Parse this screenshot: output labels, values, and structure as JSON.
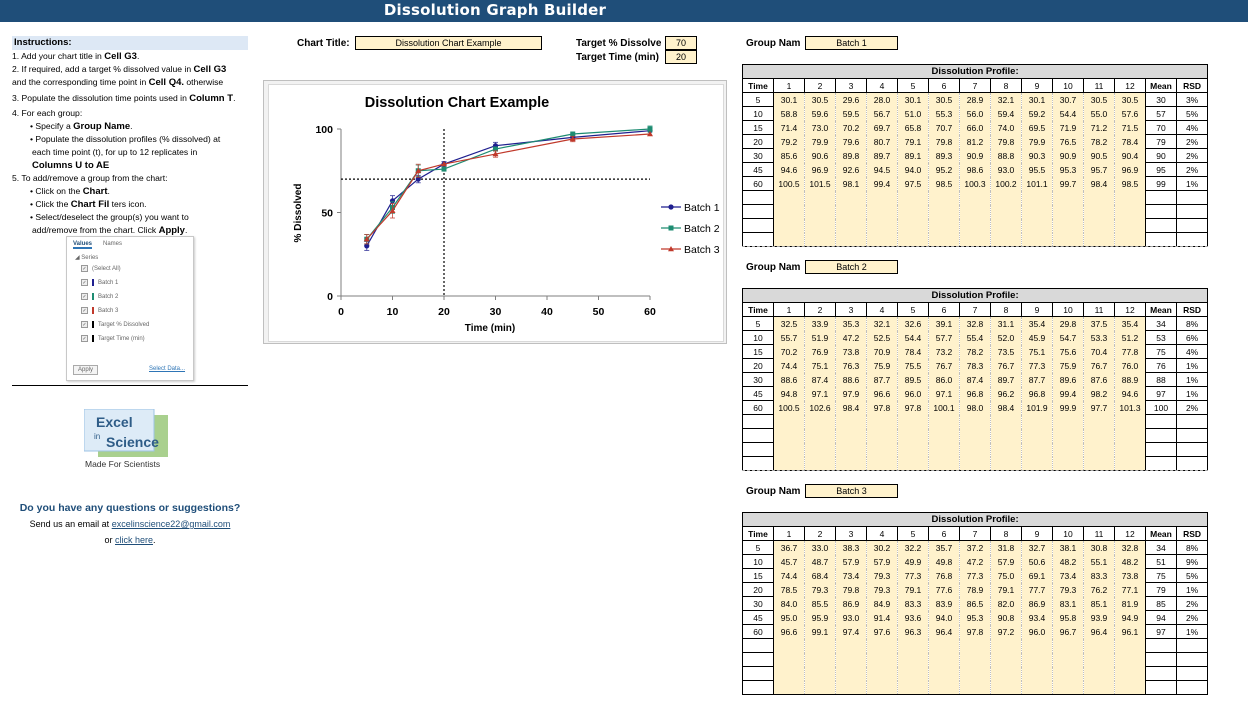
{
  "app": {
    "title": "Dissolution Graph Builder"
  },
  "instructions": {
    "heading": "Instructions:",
    "lines": [
      {
        "pre": "1. Add your chart title in ",
        "bold": "Cell G3",
        "post": "."
      },
      {
        "pre": "2. If required, add a target % dissolved value in ",
        "bold": "Cell G3",
        "post": ""
      },
      {
        "pre": "and the corresponding time point in ",
        "bold": "Cell Q4.",
        "post": "  otherwise"
      },
      {
        "pre": "3. Populate the dissolution time points used in ",
        "bold": "Column T",
        "post": "."
      },
      {
        "pre": "4. For each group:",
        "bold": "",
        "post": ""
      },
      {
        "pre": "• Specify a ",
        "bold": "Group Name",
        "post": "."
      },
      {
        "pre": "• Populate the dissolution profiles (% dissolved) at",
        "bold": "",
        "post": ""
      },
      {
        "pre": "each time point (t), for up to 12 replicates in",
        "bold": "",
        "post": ""
      },
      {
        "pre": "",
        "bold": "Columns U to AE",
        "post": ""
      },
      {
        "pre": "5. To add/remove a group from the chart:",
        "bold": "",
        "post": ""
      },
      {
        "pre": "• Click on the ",
        "bold": "Chart",
        "post": "."
      },
      {
        "pre": "• Click the ",
        "bold": "Chart Fil",
        "post": "  ters       icon."
      },
      {
        "pre": "• Select/deselect the group(s) you want to",
        "bold": "",
        "post": ""
      },
      {
        "pre": "add/remove from the chart. Click ",
        "bold": "Apply",
        "post": "."
      }
    ]
  },
  "filter_pane": {
    "tab_values": "Values",
    "tab_names": "Names",
    "section": "◢ Series",
    "items": [
      {
        "label": "(Select All)",
        "color": ""
      },
      {
        "label": "Batch 1",
        "color": "#1f1f8f"
      },
      {
        "label": "Batch 2",
        "color": "#1e8c72"
      },
      {
        "label": "Batch 3",
        "color": "#c0392b"
      },
      {
        "label": "Target % Dissolved",
        "color": "#000000"
      },
      {
        "label": "Target Time (min)",
        "color": "#000000"
      }
    ],
    "apply": "Apply",
    "select_data": "Select Data..."
  },
  "logo": {
    "line1": "Excel",
    "line2": "in",
    "line3": "Science",
    "tagline": "Made For Scientists"
  },
  "contact": {
    "heading": "Do you have any questions or suggestions?",
    "line_pre": "Send us an email at ",
    "email": "excelinscience22@gmail.com",
    "line2_pre": "or ",
    "link": "click here",
    "line2_post": "."
  },
  "settings": {
    "chart_title_label": "Chart Title:",
    "chart_title_value": "Dissolution Chart Example",
    "target_pct_label": "Target % Dissolve",
    "target_pct_value": "70",
    "target_time_label": "Target Time (min)",
    "target_time_value": "20"
  },
  "chart_data": {
    "type": "line",
    "title": "Dissolution Chart Example",
    "xlabel": "Time (min)",
    "ylabel": "% Dissolved",
    "xlim": [
      0,
      60
    ],
    "ylim": [
      0,
      100
    ],
    "xticks": [
      0,
      10,
      20,
      30,
      40,
      50,
      60
    ],
    "yticks": [
      0,
      50,
      100
    ],
    "x": [
      5,
      10,
      15,
      20,
      30,
      45,
      60
    ],
    "target": {
      "y": 70,
      "x": 20
    },
    "legend_position": "right",
    "series": [
      {
        "name": "Batch 1",
        "color": "#1f1f8f",
        "marker": "circle",
        "values": [
          30,
          57,
          70,
          79,
          90,
          95,
          99
        ]
      },
      {
        "name": "Batch 2",
        "color": "#1e8c72",
        "marker": "square",
        "values": [
          34,
          53,
          75,
          76,
          88,
          97,
          100
        ]
      },
      {
        "name": "Batch 3",
        "color": "#c0392b",
        "marker": "triangle",
        "values": [
          34,
          51,
          75,
          79,
          85,
          94,
          97
        ]
      }
    ],
    "errors": [
      [
        2.7,
        3.1,
        2.2,
        1.5,
        2.0,
        1.5,
        1.0
      ],
      [
        2.8,
        3.5,
        3.4,
        1.2,
        1.4,
        1.4,
        1.8
      ],
      [
        2.8,
        4.3,
        3.9,
        1.3,
        1.9,
        1.6,
        1.0
      ]
    ]
  },
  "groups": [
    {
      "label": "Group Nam",
      "name": "Batch 1",
      "profile_title": "Dissolution Profile:",
      "headers": [
        "Time",
        "1",
        "2",
        "3",
        "4",
        "5",
        "6",
        "7",
        "8",
        "9",
        "10",
        "11",
        "12",
        "Mean",
        "RSD"
      ],
      "rows": [
        [
          "5",
          "30.1",
          "30.5",
          "29.6",
          "28.0",
          "30.1",
          "30.5",
          "28.9",
          "32.1",
          "30.1",
          "30.7",
          "30.5",
          "30.5",
          "30",
          "3%"
        ],
        [
          "10",
          "58.8",
          "59.6",
          "59.5",
          "56.7",
          "51.0",
          "55.3",
          "56.0",
          "59.4",
          "59.2",
          "54.4",
          "55.0",
          "57.6",
          "57",
          "5%"
        ],
        [
          "15",
          "71.4",
          "73.0",
          "70.2",
          "69.7",
          "65.8",
          "70.7",
          "66.0",
          "74.0",
          "69.5",
          "71.9",
          "71.2",
          "71.5",
          "70",
          "4%"
        ],
        [
          "20",
          "79.2",
          "79.9",
          "79.6",
          "80.7",
          "79.1",
          "79.8",
          "81.2",
          "79.8",
          "79.9",
          "76.5",
          "78.2",
          "78.4",
          "79",
          "2%"
        ],
        [
          "30",
          "85.6",
          "90.6",
          "89.8",
          "89.7",
          "89.1",
          "89.3",
          "90.9",
          "88.8",
          "90.3",
          "90.9",
          "90.5",
          "90.4",
          "90",
          "2%"
        ],
        [
          "45",
          "94.6",
          "96.9",
          "92.6",
          "94.5",
          "94.0",
          "95.2",
          "98.6",
          "93.0",
          "95.5",
          "95.3",
          "95.7",
          "96.9",
          "95",
          "2%"
        ],
        [
          "60",
          "100.5",
          "101.5",
          "98.1",
          "99.4",
          "97.5",
          "98.5",
          "100.3",
          "100.2",
          "101.1",
          "99.7",
          "98.4",
          "98.5",
          "99",
          "1%"
        ]
      ]
    },
    {
      "label": "Group Nam",
      "name": "Batch 2",
      "profile_title": "Dissolution Profile:",
      "headers": [
        "Time",
        "1",
        "2",
        "3",
        "4",
        "5",
        "6",
        "7",
        "8",
        "9",
        "10",
        "11",
        "12",
        "Mean",
        "RSD"
      ],
      "rows": [
        [
          "5",
          "32.5",
          "33.9",
          "35.3",
          "32.1",
          "32.6",
          "39.1",
          "32.8",
          "31.1",
          "35.4",
          "29.8",
          "37.5",
          "35.4",
          "34",
          "8%"
        ],
        [
          "10",
          "55.7",
          "51.9",
          "47.2",
          "52.5",
          "54.4",
          "57.7",
          "55.4",
          "52.0",
          "45.9",
          "54.7",
          "53.3",
          "51.2",
          "53",
          "6%"
        ],
        [
          "15",
          "70.2",
          "76.9",
          "73.8",
          "70.9",
          "78.4",
          "73.2",
          "78.2",
          "73.5",
          "75.1",
          "75.6",
          "70.4",
          "77.8",
          "75",
          "4%"
        ],
        [
          "20",
          "74.4",
          "75.1",
          "76.3",
          "75.9",
          "75.5",
          "76.7",
          "78.3",
          "76.7",
          "77.3",
          "75.9",
          "76.7",
          "76.0",
          "76",
          "1%"
        ],
        [
          "30",
          "88.6",
          "87.4",
          "88.6",
          "87.7",
          "89.5",
          "86.0",
          "87.4",
          "89.7",
          "87.7",
          "89.6",
          "87.6",
          "88.9",
          "88",
          "1%"
        ],
        [
          "45",
          "94.8",
          "97.1",
          "97.9",
          "96.6",
          "96.0",
          "97.1",
          "96.8",
          "96.2",
          "96.8",
          "99.4",
          "98.2",
          "94.6",
          "97",
          "1%"
        ],
        [
          "60",
          "100.5",
          "102.6",
          "98.4",
          "97.8",
          "97.8",
          "100.1",
          "98.0",
          "98.4",
          "101.9",
          "99.9",
          "97.7",
          "101.3",
          "100",
          "2%"
        ]
      ]
    },
    {
      "label": "Group Nam",
      "name": "Batch 3",
      "profile_title": "Dissolution Profile:",
      "headers": [
        "Time",
        "1",
        "2",
        "3",
        "4",
        "5",
        "6",
        "7",
        "8",
        "9",
        "10",
        "11",
        "12",
        "Mean",
        "RSD"
      ],
      "rows": [
        [
          "5",
          "36.7",
          "33.0",
          "38.3",
          "30.2",
          "32.2",
          "35.7",
          "37.2",
          "31.8",
          "32.7",
          "38.1",
          "30.8",
          "32.8",
          "34",
          "8%"
        ],
        [
          "10",
          "45.7",
          "48.7",
          "57.9",
          "57.9",
          "49.9",
          "49.8",
          "47.2",
          "57.9",
          "50.6",
          "48.2",
          "55.1",
          "48.2",
          "51",
          "9%"
        ],
        [
          "15",
          "74.4",
          "68.4",
          "73.4",
          "79.3",
          "77.3",
          "76.8",
          "77.3",
          "75.0",
          "69.1",
          "73.4",
          "83.3",
          "73.8",
          "75",
          "5%"
        ],
        [
          "20",
          "78.5",
          "79.3",
          "79.8",
          "79.3",
          "79.1",
          "77.6",
          "78.9",
          "79.1",
          "77.7",
          "79.3",
          "76.2",
          "77.1",
          "79",
          "1%"
        ],
        [
          "30",
          "84.0",
          "85.5",
          "86.9",
          "84.9",
          "83.3",
          "83.9",
          "86.5",
          "82.0",
          "86.9",
          "83.1",
          "85.1",
          "81.9",
          "85",
          "2%"
        ],
        [
          "45",
          "95.0",
          "95.9",
          "93.0",
          "91.4",
          "93.6",
          "94.0",
          "95.3",
          "90.8",
          "93.4",
          "95.8",
          "93.9",
          "94.9",
          "94",
          "2%"
        ],
        [
          "60",
          "96.6",
          "99.1",
          "97.4",
          "97.6",
          "96.3",
          "96.4",
          "97.8",
          "97.2",
          "96.0",
          "96.7",
          "96.4",
          "96.1",
          "97",
          "1%"
        ]
      ]
    }
  ]
}
